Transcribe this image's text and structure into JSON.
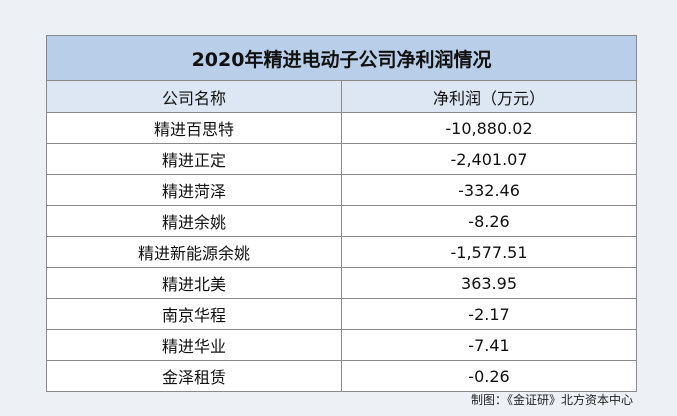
{
  "table": {
    "title": "2020年精进电动子公司净利润情况",
    "columns": [
      "公司名称",
      "净利润（万元）"
    ],
    "rows": [
      [
        "精进百思特",
        "-10,880.02"
      ],
      [
        "精进正定",
        "-2,401.07"
      ],
      [
        "精进菏泽",
        "-332.46"
      ],
      [
        "精进余姚",
        "-8.26"
      ],
      [
        "精进新能源余姚",
        "-1,577.51"
      ],
      [
        "精进北美",
        "363.95"
      ],
      [
        "南京华程",
        "-2.17"
      ],
      [
        "精进华业",
        "-7.41"
      ],
      [
        "金泽租赁",
        "-0.26"
      ]
    ]
  },
  "footer": "制图：《金证研》北方资本中心"
}
